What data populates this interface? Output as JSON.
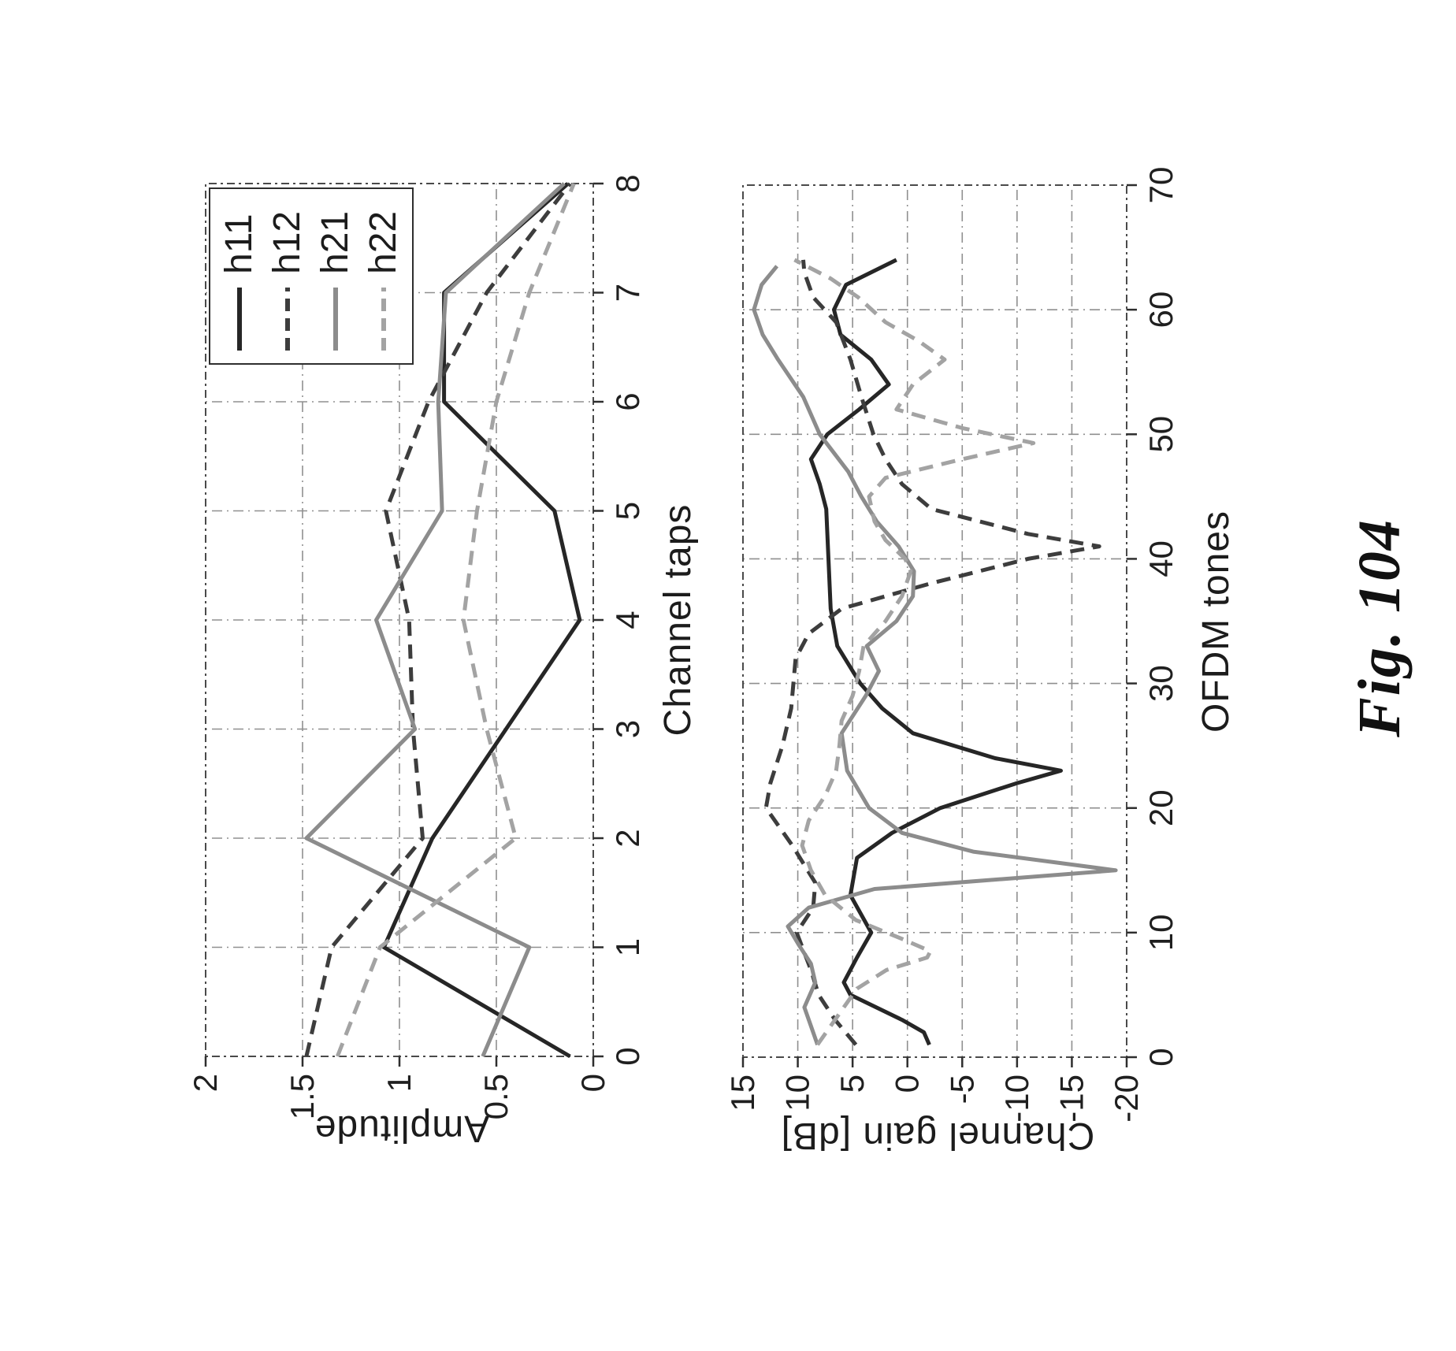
{
  "figure": {
    "caption": "Fig. 104"
  },
  "chart_data": [
    {
      "type": "line",
      "title": "",
      "xlabel": "Channel taps",
      "ylabel": "Amplitude",
      "xlim": [
        0,
        8
      ],
      "ylim": [
        0,
        2
      ],
      "xticks": [
        0,
        1,
        2,
        3,
        4,
        5,
        6,
        7,
        8
      ],
      "yticks": [
        0,
        0.5,
        1,
        1.5,
        2
      ],
      "grid": true,
      "legend": true,
      "legend_position": "top-right",
      "series": [
        {
          "name": "h11",
          "style": "solid",
          "color": "#262626",
          "x": [
            0,
            1,
            2,
            3,
            4,
            5,
            6,
            7,
            8
          ],
          "y": [
            0.12,
            1.08,
            0.83,
            0.45,
            0.07,
            0.2,
            0.77,
            0.77,
            0.13
          ]
        },
        {
          "name": "h12",
          "style": "dashed",
          "color": "#3d3d3d",
          "x": [
            0,
            1,
            2,
            3,
            4,
            5,
            6,
            7,
            8
          ],
          "y": [
            1.48,
            1.35,
            0.88,
            0.93,
            0.95,
            1.07,
            0.85,
            0.55,
            0.12
          ]
        },
        {
          "name": "h21",
          "style": "solid",
          "color": "#8c8c8c",
          "x": [
            0,
            1,
            2,
            3,
            4,
            5,
            6,
            7,
            8
          ],
          "y": [
            0.57,
            0.33,
            1.48,
            0.92,
            1.12,
            0.78,
            0.8,
            0.76,
            0.15
          ]
        },
        {
          "name": "h22",
          "style": "dashed",
          "color": "#a3a3a3",
          "x": [
            0,
            1,
            2,
            3,
            4,
            5,
            6,
            7,
            8
          ],
          "y": [
            1.32,
            1.1,
            0.4,
            0.55,
            0.67,
            0.6,
            0.5,
            0.33,
            0.1
          ]
        }
      ]
    },
    {
      "type": "line",
      "title": "",
      "xlabel": "OFDM tones",
      "ylabel": "Channel gain [dB]",
      "xlim": [
        0,
        70
      ],
      "ylim": [
        -20,
        15
      ],
      "xticks": [
        0,
        10,
        20,
        30,
        40,
        50,
        60,
        70
      ],
      "yticks": [
        15,
        10,
        5,
        0,
        -5,
        -10,
        -15,
        -20
      ],
      "grid": true,
      "legend": false,
      "series": [
        {
          "name": "h11",
          "style": "solid",
          "color": "#262626",
          "x": [
            1,
            2,
            3,
            5,
            6,
            8,
            10,
            13,
            16,
            18,
            20,
            22,
            23,
            24,
            26,
            28,
            30,
            33,
            36,
            40,
            44,
            46,
            48,
            50,
            52,
            54,
            56,
            58,
            60,
            62,
            64
          ],
          "y": [
            -2,
            -1.5,
            0.5,
            5.2,
            5.8,
            4.6,
            3.3,
            5.2,
            4.6,
            1.4,
            -3,
            -10,
            -14,
            -8,
            -0.5,
            2.3,
            4.3,
            6.4,
            7,
            7.2,
            7.4,
            8,
            8.8,
            7.3,
            4.4,
            1.7,
            3.3,
            6.1,
            6.7,
            5.6,
            1
          ]
        },
        {
          "name": "h12",
          "style": "dashed",
          "color": "#3d3d3d",
          "x": [
            1,
            3,
            5,
            7,
            10,
            12,
            14,
            17,
            20,
            22,
            25,
            28,
            32,
            34,
            36,
            38,
            40,
            41,
            42,
            44,
            46,
            48,
            50,
            53,
            56,
            59,
            61,
            63,
            64
          ],
          "y": [
            4.7,
            6.6,
            8.1,
            8.8,
            10.1,
            8.6,
            8.4,
            10.5,
            12.9,
            12.5,
            11.4,
            10.6,
            10.2,
            9,
            6,
            -2,
            -11,
            -17.5,
            -11,
            -2.2,
            0.5,
            2,
            3.1,
            4.2,
            5.2,
            6.5,
            8.6,
            9.4,
            9.5
          ]
        },
        {
          "name": "h21",
          "style": "solid",
          "color": "#8c8c8c",
          "x": [
            1,
            2.5,
            4,
            6,
            7.5,
            9,
            10.5,
            12,
            13.5,
            15,
            16.5,
            18,
            20,
            23,
            26,
            29,
            31,
            33,
            35,
            37,
            39,
            41,
            43,
            45,
            47,
            50,
            53,
            56,
            58,
            60,
            62,
            63.5
          ],
          "y": [
            8.2,
            8.8,
            9.4,
            8.4,
            8.8,
            9.9,
            10.9,
            9,
            3,
            -19,
            -6,
            0.5,
            3.5,
            5.5,
            6,
            3.8,
            2.6,
            3.7,
            1,
            -0.5,
            -0.6,
            0.8,
            2.8,
            4.2,
            5.4,
            8,
            9.5,
            11.8,
            13.2,
            14,
            13.3,
            11.9
          ]
        },
        {
          "name": "h22",
          "style": "dashed",
          "color": "#a3a3a3",
          "x": [
            1,
            2.5,
            4,
            5.5,
            7,
            8,
            8.5,
            9.5,
            11,
            13,
            15,
            17,
            19,
            21,
            23,
            25,
            27,
            29,
            31,
            33,
            35,
            37,
            39,
            40,
            41.5,
            43,
            45,
            46.5,
            48,
            49.3,
            50.5,
            52,
            54,
            56,
            57.5,
            59,
            61,
            62.5,
            64
          ],
          "y": [
            8.2,
            7,
            5.8,
            4.6,
            1.9,
            -1.8,
            -2.1,
            0.5,
            4.7,
            7.5,
            8.8,
            9.6,
            9,
            7.5,
            6.5,
            6.2,
            6,
            5,
            4.4,
            4,
            2,
            0.5,
            -0.3,
            0.2,
            2,
            3,
            3.5,
            2,
            -5,
            -11.5,
            -5,
            1,
            -0.5,
            -3.4,
            -1,
            2,
            4.5,
            7,
            10.3
          ]
        }
      ]
    }
  ]
}
